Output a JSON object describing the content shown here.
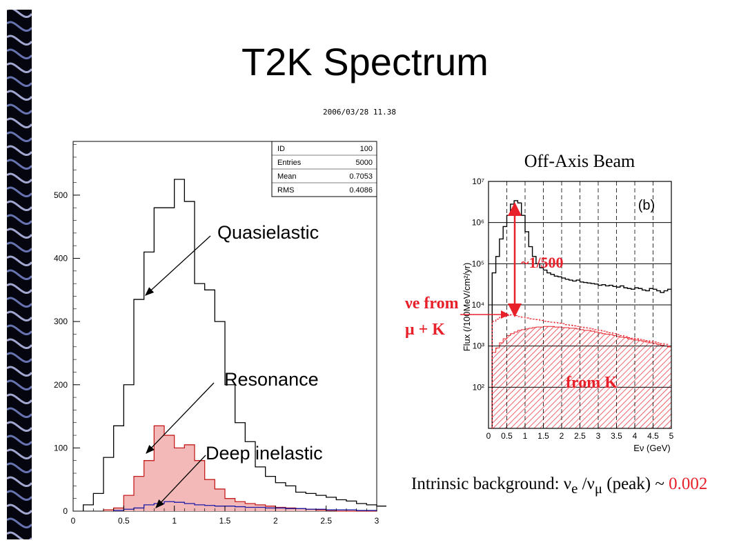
{
  "slide": {
    "title": "T2K Spectrum",
    "timestamp": "2006/03/28   11.38",
    "decoration": "blue-swirl-strip"
  },
  "callouts": {
    "quasielastic": "Quasielastic",
    "resonance": "Resonance",
    "deep_inelastic": "Deep inelastic"
  },
  "colors": {
    "total": "#000000",
    "resonance": "#c41e1e",
    "resonance_fill": "#f3b8b8",
    "deep_inelastic": "#1a1aa8",
    "offaxis_red": "#e8202a"
  },
  "chart_data": [
    {
      "type": "histogram",
      "xlim": [
        0,
        3
      ],
      "ylim": [
        0,
        585
      ],
      "xticks": [
        "0",
        "0.5",
        "1",
        "1.5",
        "2",
        "2.5",
        "3"
      ],
      "yticks": [
        "0",
        "100",
        "200",
        "300",
        "400",
        "500"
      ],
      "bin_width": 0.1,
      "stats_box": {
        "rows": [
          [
            "ID",
            "100"
          ],
          [
            "Entries",
            "5000"
          ],
          [
            "Mean",
            "0.7053"
          ],
          [
            "RMS",
            "0.4086"
          ]
        ]
      },
      "series": [
        {
          "name": "Quasielastic",
          "x_start": 0.1,
          "values": [
            10,
            28,
            85,
            135,
            200,
            335,
            410,
            480,
            480,
            525,
            490,
            360,
            350,
            300,
            200,
            140,
            110,
            70,
            55,
            45,
            40,
            30,
            28,
            25,
            22,
            18,
            16,
            12,
            10,
            8
          ]
        },
        {
          "name": "Resonance",
          "x_start": 0.3,
          "values": [
            2,
            5,
            25,
            55,
            80,
            135,
            120,
            100,
            105,
            80,
            50,
            35,
            20,
            15,
            12,
            10,
            8,
            6,
            5,
            4,
            3,
            2,
            1,
            0,
            0,
            0,
            0
          ]
        },
        {
          "name": "Deep inelastic",
          "x_start": 0.4,
          "values": [
            1,
            3,
            5,
            10,
            12,
            15,
            14,
            12,
            10,
            9,
            8,
            8,
            7,
            6,
            6,
            5,
            5,
            4,
            4,
            3,
            3,
            2,
            2,
            2,
            1,
            1
          ]
        }
      ]
    },
    {
      "type": "histogram",
      "title": "Off-Axis Beam",
      "panel_label": "(b)",
      "xlabel": "Eν (GeV)",
      "ylabel": "Flux (/100MeV/cm²/yr)",
      "yscale": "log",
      "xlim": [
        0,
        5
      ],
      "ylim": [
        10,
        10000000
      ],
      "xticks": [
        "0",
        "0.5",
        "1",
        "1.5",
        "2",
        "2.5",
        "3",
        "3.5",
        "4",
        "4.5",
        "5"
      ],
      "yticks": [
        "10²",
        "10³",
        "10⁴",
        "10⁵",
        "10⁶",
        "10⁷"
      ],
      "bin_width": 0.1,
      "annotations": {
        "ratio": "~1/500",
        "nue_line1": "νe from",
        "nue_line2": "μ + K",
        "from_k": "from K"
      },
      "series": [
        {
          "name": "numu",
          "x_start": 0.1,
          "values": [
            60000,
            150000,
            400000,
            800000,
            1500000,
            2800000,
            3400000,
            3000000,
            1500000,
            600000,
            260000,
            150000,
            100000,
            80000,
            70000,
            60000,
            55000,
            50000,
            48000,
            45000,
            42000,
            40000,
            38000,
            40000,
            36000,
            35000,
            34000,
            33000,
            32000,
            30000,
            31000,
            29000,
            30000,
            28000,
            27000,
            29000,
            26000,
            25000,
            24000,
            26000,
            25000,
            23000,
            22000,
            25000,
            24000,
            22000,
            20000,
            22000,
            24000
          ]
        },
        {
          "name": "nue",
          "x_start": 0.1,
          "values": [
            4000,
            4500,
            5000,
            5200,
            5500,
            5800,
            5500,
            5200,
            5000,
            4800,
            4600,
            4500,
            4400,
            4200,
            4000,
            3900,
            3800,
            3700,
            3600,
            3500,
            3300,
            3200,
            3100,
            3000,
            2900,
            2800,
            2700,
            2600,
            2500,
            2400,
            2300,
            2200,
            2100,
            2000,
            1900,
            1800,
            1700,
            1600,
            1550,
            1500,
            1450,
            1400,
            1350,
            1300,
            1250,
            1200,
            1150,
            1100,
            1000
          ]
        },
        {
          "name": "from K",
          "x_start": 0.1,
          "values": [
            700,
            900,
            1200,
            1500,
            1800,
            2000,
            2200,
            2400,
            2500,
            2600,
            2700,
            2800,
            2900,
            2900,
            3000,
            3000,
            3000,
            2900,
            2900,
            2800,
            2800,
            2700,
            2700,
            2600,
            2500,
            2400,
            2400,
            2300,
            2200,
            2100,
            2000,
            1950,
            1900,
            1800,
            1700,
            1650,
            1600,
            1500,
            1450,
            1400,
            1350,
            1300,
            1250,
            1200,
            1150,
            1100,
            1050,
            1000,
            950
          ]
        }
      ]
    }
  ],
  "footer": {
    "prefix": "Intrinsic background: ν",
    "sub_e": "e",
    "mid": " /ν",
    "sub_mu": "μ",
    "suffix": " (peak) ~ ",
    "value": "0.002"
  }
}
